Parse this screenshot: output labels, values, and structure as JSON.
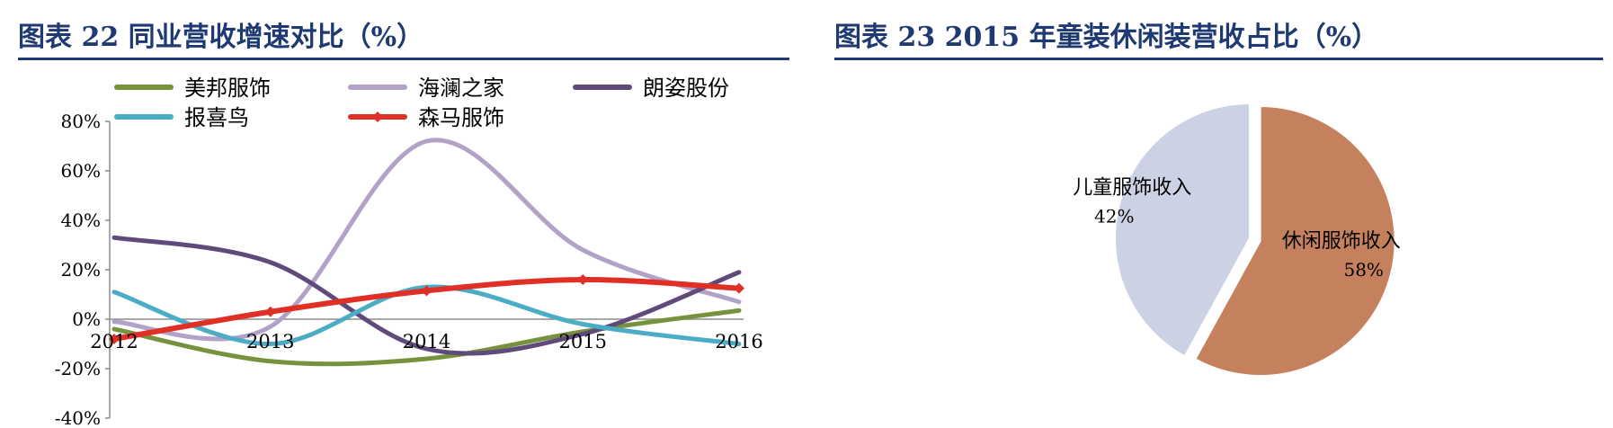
{
  "panels": [
    {
      "title": "图表  22    同业营收增速对比（%）"
    },
    {
      "title": "图表  23    2015 年童装休闲装营收占比（%）"
    }
  ],
  "chart_data": [
    {
      "type": "line",
      "title": "",
      "x": [
        "2012",
        "2013",
        "2014",
        "2015",
        "2016"
      ],
      "y_ticks": [
        "80%",
        "60%",
        "40%",
        "20%",
        "0%",
        "-20%",
        "-40%"
      ],
      "ylim": [
        -40,
        80
      ],
      "legend_position": "top",
      "series": [
        {
          "name": "美邦服饰",
          "color": "#77923c",
          "values": [
            -4,
            -17,
            -16,
            -5,
            3.5
          ]
        },
        {
          "name": "海澜之家",
          "color": "#b3a2c7",
          "values": [
            -1,
            -3,
            72,
            28,
            7
          ]
        },
        {
          "name": "朗姿股份",
          "color": "#604a7b",
          "values": [
            33,
            23,
            -12,
            -6,
            19
          ]
        },
        {
          "name": "报喜鸟",
          "color": "#4bacc6",
          "values": [
            11,
            -10,
            13,
            -2,
            -10
          ]
        },
        {
          "name": "森马服饰",
          "color": "#e03026",
          "values": [
            -8,
            3,
            11.5,
            16,
            12.5
          ],
          "markers": true
        }
      ]
    },
    {
      "type": "pie",
      "title": "",
      "slices": [
        {
          "label": "休闲服饰收入",
          "value": 58,
          "value_label": "58%",
          "color": "#c5815e",
          "exploded": true
        },
        {
          "label": "儿童服饰收入",
          "value": 42,
          "value_label": "42%",
          "color": "#ccd2e4"
        }
      ]
    }
  ]
}
